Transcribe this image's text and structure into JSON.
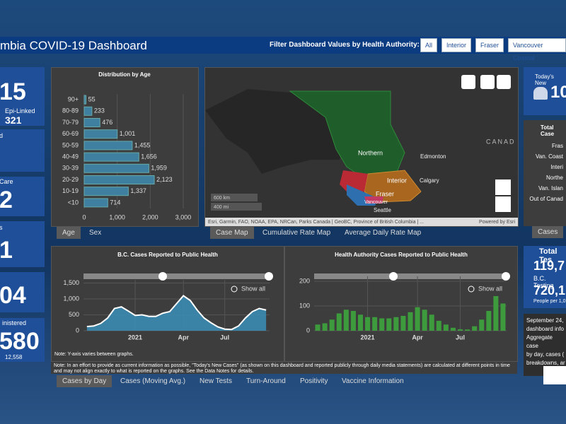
{
  "header": {
    "title": "mbia COVID-19 Dashboard",
    "filter_label": "Filter Dashboard Values by Health Authority:",
    "filters": [
      "All",
      "Interior",
      "Fraser",
      "Vancouver Coastal"
    ]
  },
  "left_tiles": {
    "t1_value": "15",
    "t1_label": "Epi-Linked",
    "t1_sub": "321",
    "t2_label": "d",
    "t3_label": "Care",
    "t3_value": "2",
    "t4_label": "s",
    "t4_value": "1",
    "t5_value": "04",
    "t6_label": "inistered",
    "t6_value": "580",
    "t6_sub": "12,558"
  },
  "age_tabs": [
    "Age",
    "Sex"
  ],
  "map_tabs": [
    "Case Map",
    "Cumulative Rate Map",
    "Average Daily Rate Map"
  ],
  "map": {
    "labels": [
      "Northern",
      "Interior",
      "Fraser",
      "Vancouver",
      "Edmonton",
      "Calgary",
      "Seattle",
      "CANAD"
    ],
    "scale": [
      "600 km",
      "400 mi"
    ],
    "attribution": "Esri, Garmin, FAO, NOAA, EPA, NRCan, Parks Canada | GeoBC, Province of British Columbia | ...",
    "powered": "Powered by Esri"
  },
  "right": {
    "todays_new": "Today's New",
    "todays_value": "10",
    "total_cases": "Total Case",
    "authorities": [
      "Fras",
      "Van. Coast",
      "Interi",
      "Northe",
      "Van. Islan",
      "Out of Canad"
    ],
    "tab": "Cases",
    "total_tests": "Total Tes",
    "total_tests_value": "119,7",
    "bc_testing": "B.C. Testing",
    "bc_testing_value": "720,1",
    "per": "People per 1,0",
    "notes": [
      "September 24,",
      "dashboard info",
      "Aggregate case",
      "by day, cases (",
      "breakdowns, ar"
    ]
  },
  "chart_data": [
    {
      "type": "bar",
      "orientation": "horizontal",
      "title": "Distribution by Age",
      "categories": [
        "90+",
        "80-89",
        "70-79",
        "60-69",
        "50-59",
        "40-49",
        "30-39",
        "20-29",
        "10-19",
        "<10"
      ],
      "values": [
        55,
        233,
        476,
        1001,
        1455,
        1656,
        1959,
        2123,
        1337,
        714
      ],
      "value_labels": [
        "55",
        "233",
        "476",
        "1,001",
        "1,455",
        "1,656",
        "1,959",
        "2,123",
        "1,337",
        "714"
      ],
      "color": "#3f7fa0",
      "xlim": [
        0,
        3000
      ],
      "xticks": [
        0,
        {
          "value": 1000,
          "label": "1,000"
        },
        {
          "value": 2000,
          "label": "2,000"
        },
        {
          "value": 3000,
          "label": "3,000"
        }
      ],
      "grid": true
    },
    {
      "type": "area",
      "title": "B.C. Cases Reported to Public Health",
      "categories": [
        null,
        null,
        null,
        null,
        null,
        null,
        null,
        "2021",
        null,
        null,
        null,
        null,
        null,
        null,
        "Apr",
        null,
        null,
        null,
        null,
        null,
        "Jul",
        null,
        null,
        null,
        null,
        null,
        null
      ],
      "values": [
        130,
        150,
        230,
        400,
        700,
        750,
        620,
        480,
        500,
        450,
        450,
        550,
        600,
        850,
        1100,
        950,
        650,
        400,
        250,
        120,
        50,
        40,
        150,
        400,
        600,
        700,
        650
      ],
      "color": "#3a8fb8",
      "line_color": "#ffffff",
      "ylim": [
        0,
        1600
      ],
      "yticks": [
        0,
        500,
        {
          "value": 1000,
          "label": "1,000"
        },
        {
          "value": 1500,
          "label": "1,500"
        }
      ],
      "grid": true
    },
    {
      "type": "bar",
      "title": "Health Authority Cases Reported to Public Health",
      "categories": [
        null,
        null,
        null,
        null,
        null,
        null,
        null,
        "2021",
        null,
        null,
        null,
        null,
        null,
        null,
        "Apr",
        null,
        null,
        null,
        null,
        null,
        "Jul",
        null,
        null,
        null,
        null,
        null,
        null
      ],
      "values": [
        25,
        30,
        45,
        70,
        85,
        80,
        65,
        55,
        55,
        50,
        50,
        55,
        60,
        75,
        95,
        85,
        65,
        40,
        25,
        12,
        6,
        5,
        18,
        45,
        80,
        140,
        110
      ],
      "color": "#3d9a3d",
      "ylim": [
        0,
        220
      ],
      "yticks": [
        0,
        100,
        200
      ],
      "grid": true
    }
  ],
  "show_all": "Show all",
  "graph_note": "Note: Y-axis varies between graphs.",
  "note": "Note: In an effort to provide as current information as possible, \"Today's New Cases\" (as shown on this dashboard and reported publicly through daily media statements) are calculated at different points in time and may not align exactly to what is reported on the graphs. See the Data Notes for details.",
  "bottom_tabs": [
    "Cases by Day",
    "Cases (Moving Avg.)",
    "New Tests",
    "Turn-Around",
    "Positivity",
    "Vaccine Information"
  ]
}
